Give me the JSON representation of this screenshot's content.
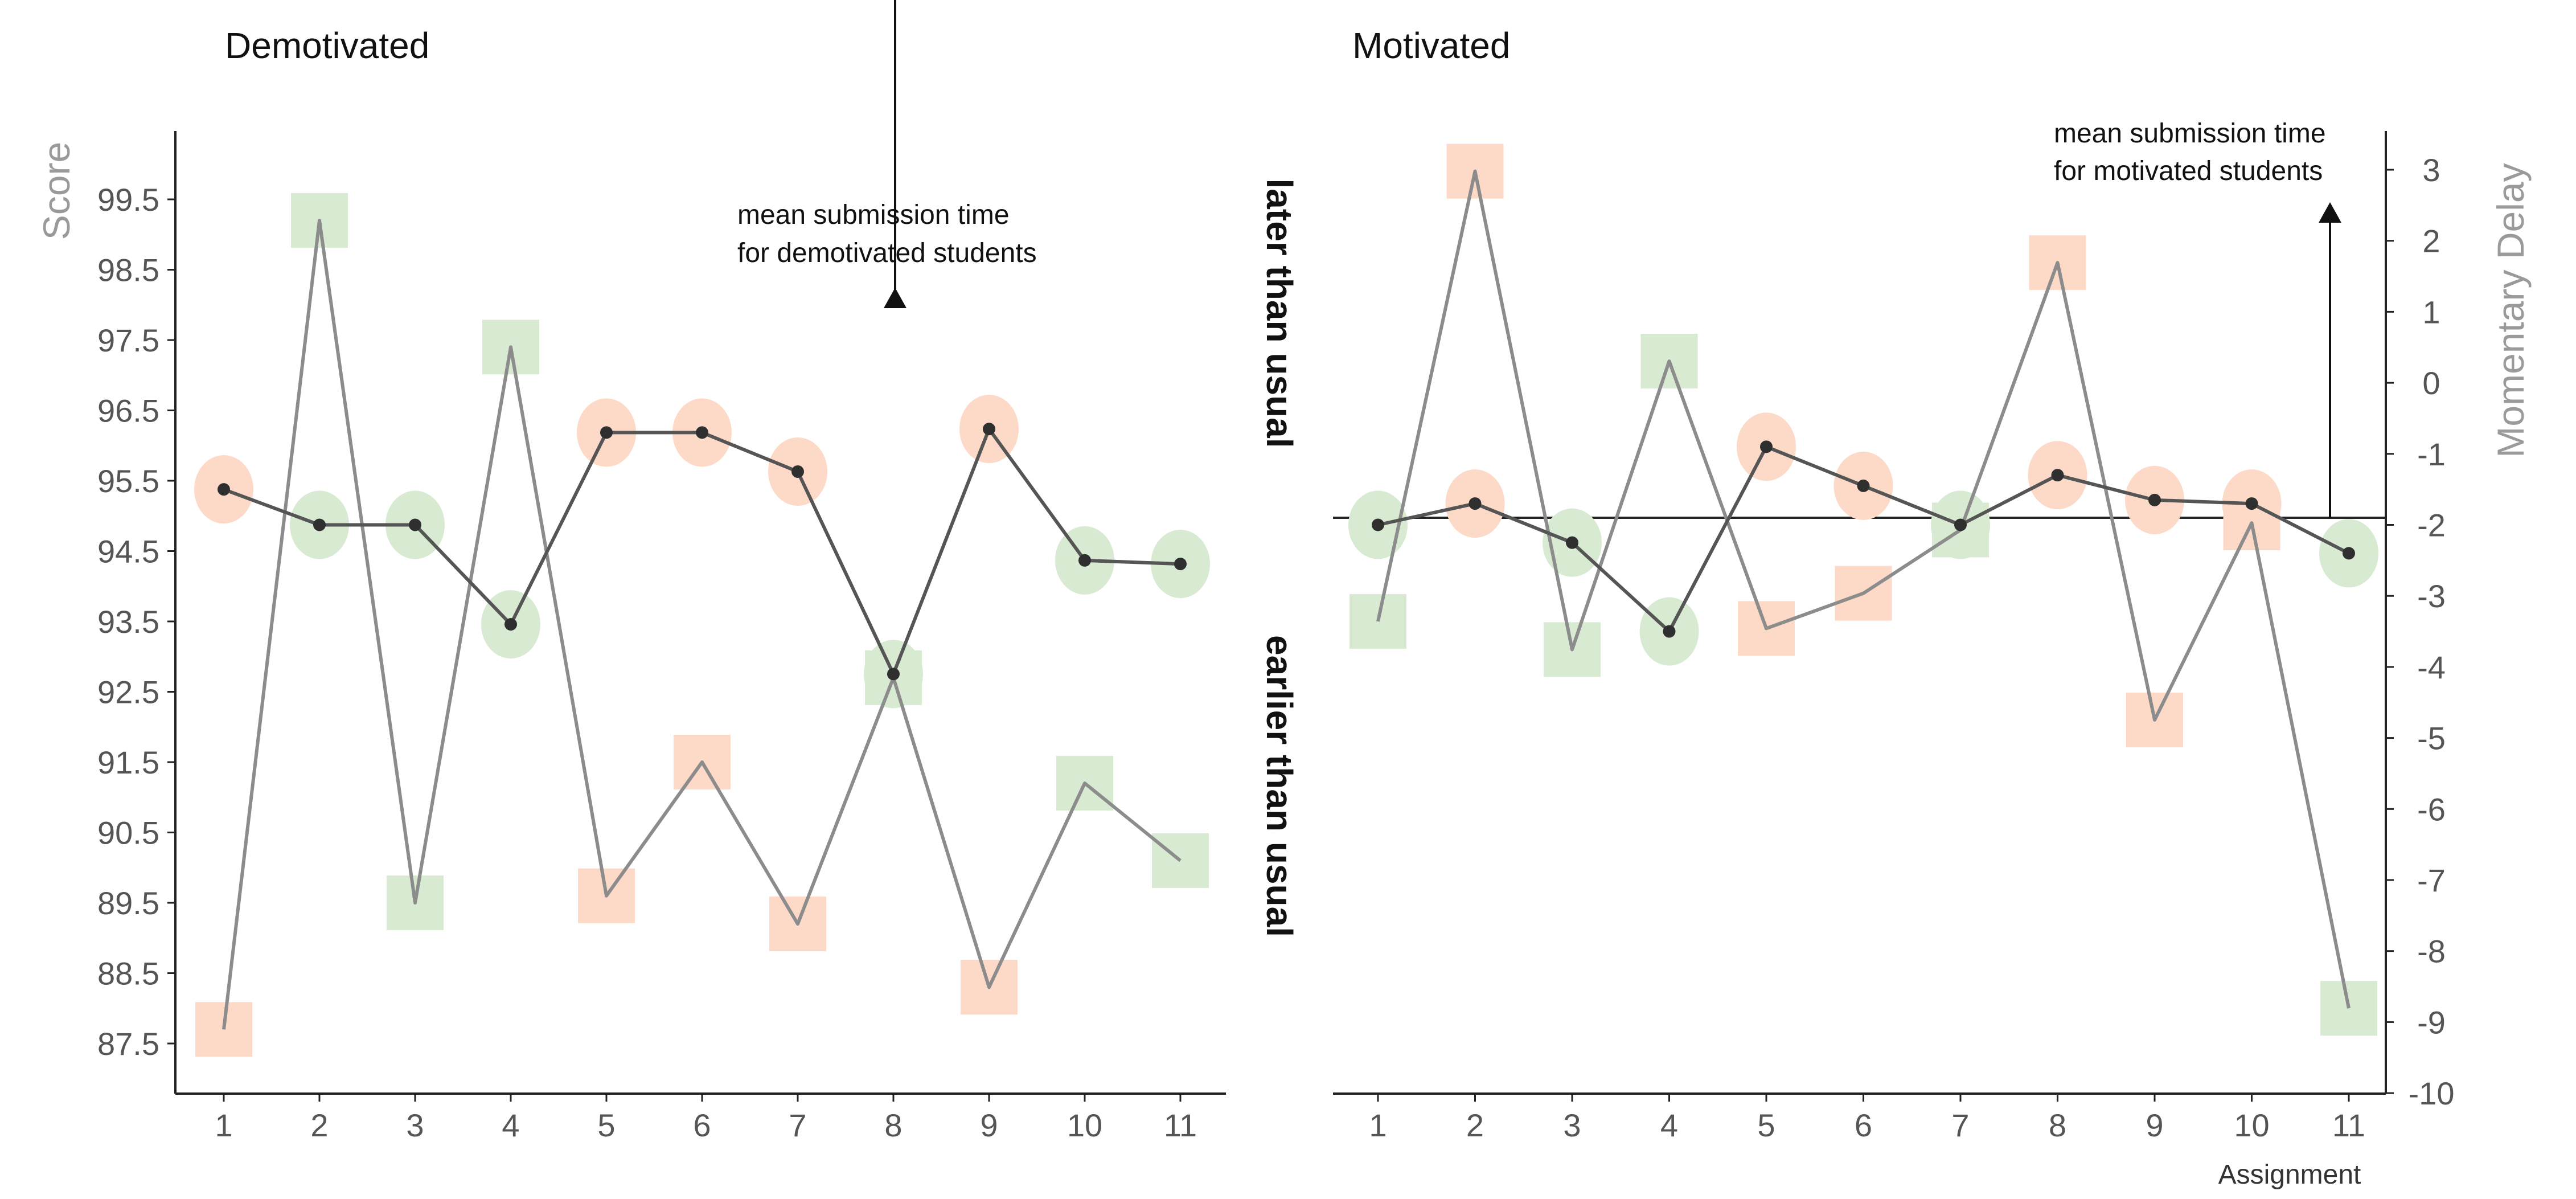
{
  "chart_data": [
    {
      "type": "line",
      "title": "Demotivated",
      "x": [
        1,
        2,
        3,
        4,
        5,
        6,
        7,
        8,
        9,
        10,
        11
      ],
      "xticks": [
        "1",
        "2",
        "3",
        "4",
        "5",
        "6",
        "7",
        "8",
        "9",
        "10",
        "11"
      ],
      "yticks": [
        "99.5",
        "98.5",
        "97.5",
        "96.5",
        "95.5",
        "94.5",
        "93.5",
        "92.5",
        "91.5",
        "90.5",
        "89.5",
        "88.5",
        "87.5"
      ],
      "ylabel": "Score",
      "ylim": [
        87.2,
        100.8
      ],
      "y2lim": [
        -10,
        3.5
      ],
      "reference_line": 95.1,
      "annotation": [
        "mean submission time",
        "for demotivated students"
      ],
      "series": [
        {
          "role": "score",
          "values": [
            87.7,
            99.2,
            89.5,
            97.4,
            89.6,
            91.5,
            89.2,
            92.7,
            88.3,
            91.2,
            90.1
          ],
          "marker_colors": [
            "#fdd9c8",
            "#d8ead2",
            "#d8ead2",
            "#d8ead2",
            "#fdd9c8",
            "#fdd9c8",
            "#fdd9c8",
            "#d8ead2",
            "#fdd9c8",
            "#d8ead2",
            "#d8ead2"
          ]
        },
        {
          "role": "momentary_delay",
          "values": [
            -1.5,
            -2.0,
            -2.0,
            -3.4,
            -0.7,
            -0.7,
            -1.25,
            -4.1,
            -0.65,
            -2.5,
            -2.55
          ],
          "marker_colors": [
            "#fdd9c8",
            "#d8ead2",
            "#d8ead2",
            "#d8ead2",
            "#fdd9c8",
            "#fdd9c8",
            "#fdd9c8",
            "#d8ead2",
            "#fdd9c8",
            "#d8ead2",
            "#d8ead2"
          ]
        }
      ]
    },
    {
      "type": "line",
      "title": "Motivated",
      "x": [
        1,
        2,
        3,
        4,
        5,
        6,
        7,
        8,
        9,
        10,
        11
      ],
      "xticks": [
        "1",
        "2",
        "3",
        "4",
        "5",
        "6",
        "7",
        "8",
        "9",
        "10",
        "11"
      ],
      "yticks": [
        "3",
        "2",
        "1",
        "0",
        "-1",
        "-2",
        "-3",
        "-4",
        "-5",
        "-6",
        "-7",
        "-8",
        "-9",
        "-10"
      ],
      "ylabel": "Momentary Delay",
      "xlabel": "Assignment",
      "ylim": [
        87.2,
        100.8
      ],
      "y2lim": [
        -10,
        3.5
      ],
      "reference_line": -1.9,
      "annotation": [
        "mean submission time",
        "for motivated students"
      ],
      "series": [
        {
          "role": "score",
          "values": [
            93.5,
            99.9,
            93.1,
            97.2,
            93.4,
            93.9,
            94.8,
            98.6,
            92.1,
            94.9,
            88.0
          ],
          "marker_colors": [
            "#d8ead2",
            "#fdd9c8",
            "#d8ead2",
            "#d8ead2",
            "#fdd9c8",
            "#fdd9c8",
            "#d8ead2",
            "#fdd9c8",
            "#fdd9c8",
            "#fdd9c8",
            "#d8ead2"
          ]
        },
        {
          "role": "momentary_delay",
          "values": [
            -2.0,
            -1.7,
            -2.25,
            -3.5,
            -0.9,
            -1.45,
            -2.0,
            -1.3,
            -1.65,
            -1.7,
            -2.4
          ],
          "marker_colors": [
            "#d8ead2",
            "#fdd9c8",
            "#d8ead2",
            "#d8ead2",
            "#fdd9c8",
            "#fdd9c8",
            "#d8ead2",
            "#fdd9c8",
            "#fdd9c8",
            "#fdd9c8",
            "#d8ead2"
          ]
        }
      ]
    }
  ],
  "middle_labels": {
    "upper": "later than usual",
    "lower": "earlier than usual"
  },
  "colors": {
    "score_line": "#8c8c8c",
    "delay_line": "#555555",
    "delay_dot": "#2f2f2f",
    "axis": "#222222",
    "late": "#fdd9c8",
    "early": "#d8ead2"
  }
}
